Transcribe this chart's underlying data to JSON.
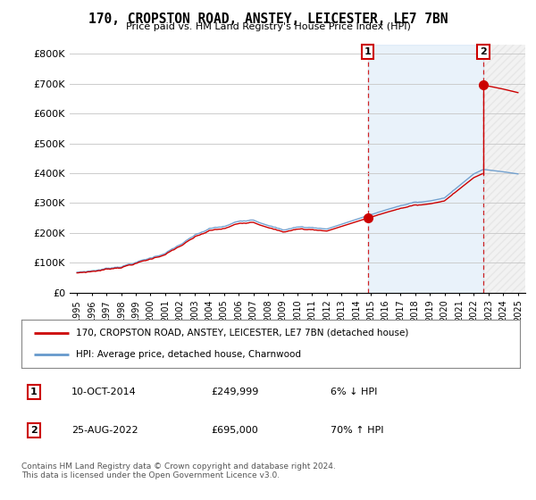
{
  "title": "170, CROPSTON ROAD, ANSTEY, LEICESTER, LE7 7BN",
  "subtitle": "Price paid vs. HM Land Registry's House Price Index (HPI)",
  "ylabel_ticks": [
    "£0",
    "£100K",
    "£200K",
    "£300K",
    "£400K",
    "£500K",
    "£600K",
    "£700K",
    "£800K"
  ],
  "ytick_values": [
    0,
    100000,
    200000,
    300000,
    400000,
    500000,
    600000,
    700000,
    800000
  ],
  "ylim": [
    0,
    830000
  ],
  "xlim_start": 1994.5,
  "xlim_end": 2025.5,
  "sale1_year": 2014.78,
  "sale1_value": 249999,
  "sale2_year": 2022.65,
  "sale2_value": 695000,
  "sale_color": "#cc0000",
  "hpi_color": "#6699cc",
  "grid_color": "#cccccc",
  "bg_color": "#ffffff",
  "shade_color": "#ddeeff",
  "hatch_color": "#cccccc",
  "legend_label_sale": "170, CROPSTON ROAD, ANSTEY, LEICESTER, LE7 7BN (detached house)",
  "legend_label_hpi": "HPI: Average price, detached house, Charnwood",
  "annotation1_label": "1",
  "annotation2_label": "2",
  "table_rows": [
    {
      "num": "1",
      "date": "10-OCT-2014",
      "price": "£249,999",
      "change": "6% ↓ HPI"
    },
    {
      "num": "2",
      "date": "25-AUG-2022",
      "price": "£695,000",
      "change": "70% ↑ HPI"
    }
  ],
  "footnote": "Contains HM Land Registry data © Crown copyright and database right 2024.\nThis data is licensed under the Open Government Licence v3.0.",
  "x_tick_years": [
    1995,
    1996,
    1997,
    1998,
    1999,
    2000,
    2001,
    2002,
    2003,
    2004,
    2005,
    2006,
    2007,
    2008,
    2009,
    2010,
    2011,
    2012,
    2013,
    2014,
    2015,
    2016,
    2017,
    2018,
    2019,
    2020,
    2021,
    2022,
    2023,
    2024,
    2025
  ]
}
